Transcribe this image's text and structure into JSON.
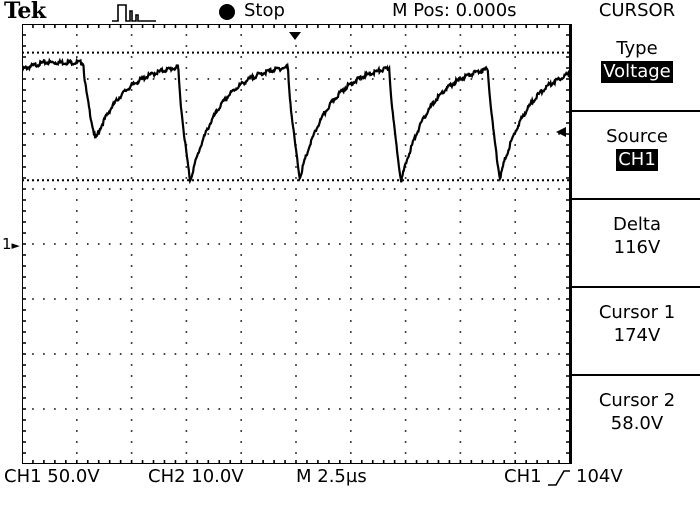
{
  "header": {
    "brand": "Tek",
    "acq_state": "Stop",
    "m_pos": "M Pos: 0.000s",
    "menu_title": "CURSOR",
    "icons": {
      "trigger": "trigger-pulse-icon",
      "run": "run-state-dot-icon"
    }
  },
  "menu": {
    "type": {
      "label": "Type",
      "value": "Voltage"
    },
    "source": {
      "label": "Source",
      "value": "CH1"
    },
    "delta": {
      "label": "Delta",
      "value": "116V"
    },
    "cursor1": {
      "label": "Cursor 1",
      "value": "174V"
    },
    "cursor2": {
      "label": "Cursor 2",
      "value": "58.0V"
    }
  },
  "footer": {
    "ch1": "CH1 50.0V",
    "ch2": "CH2 10.0V",
    "timebase": "M 2.5µs",
    "trigger_source": "CH1",
    "trigger_level": "104V",
    "icons": {
      "slope": "rising-edge-icon"
    }
  },
  "screen": {
    "channel_marker": "1",
    "colors": {
      "trace": "#000000",
      "grid": "#000000",
      "background": "#ffffff"
    }
  },
  "chart_data": {
    "type": "line",
    "grid": true,
    "ylim": [
      -4,
      4
    ],
    "xlim": [
      0,
      10
    ],
    "cursors_divisions": [
      3.48,
      1.16
    ],
    "waveform": {
      "baseline_div": 3.3,
      "dips": [
        {
          "start": 1.12,
          "min_div": 1.9
        },
        {
          "start": 2.85,
          "min_div": 1.15
        },
        {
          "start": 4.85,
          "min_div": 1.2
        },
        {
          "start": 6.7,
          "min_div": 1.15
        },
        {
          "start": 8.5,
          "min_div": 1.2
        }
      ]
    }
  }
}
